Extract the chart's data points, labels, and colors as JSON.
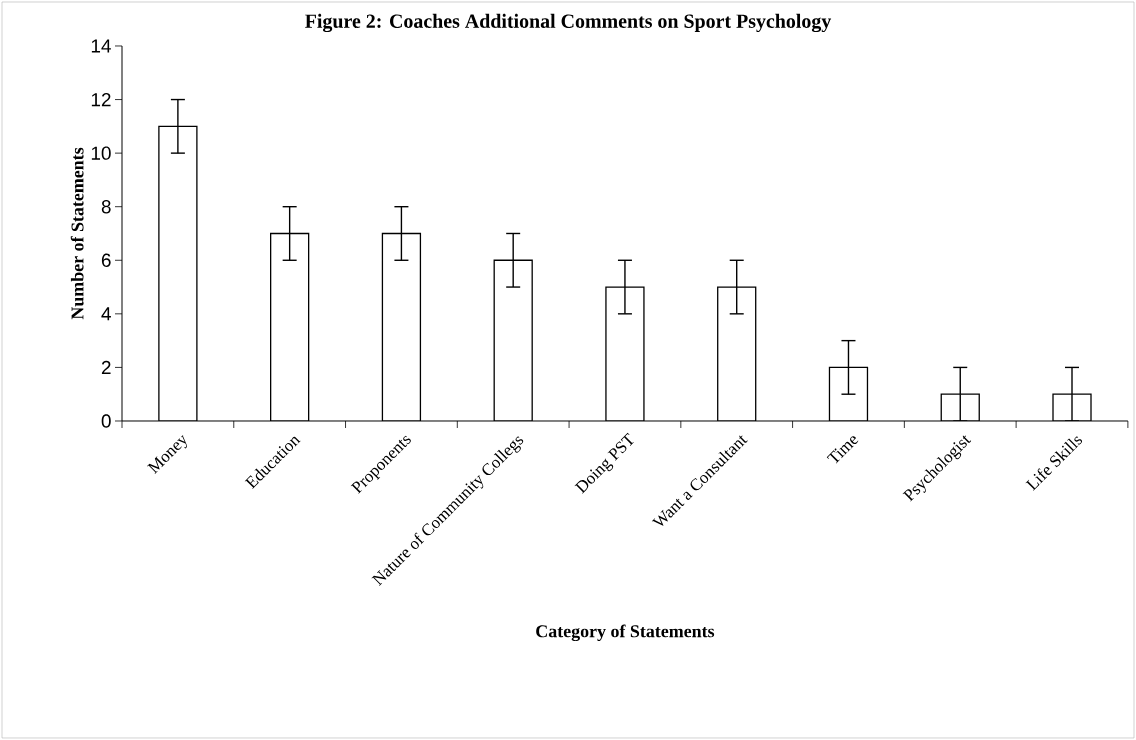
{
  "chart_data": {
    "type": "bar",
    "title": "Figure 2: Coaches Additional Comments on Sport Psychology",
    "xlabel": "Category of Statements",
    "ylabel": "Number of Statements",
    "categories": [
      "Money",
      "Education",
      "Proponents",
      "Nature of Community Collegs",
      "Doing PST",
      "Want a Consultant",
      "Time",
      "Psychologist",
      "Life Skills"
    ],
    "values": [
      11,
      7,
      7,
      6,
      5,
      5,
      2,
      1,
      1
    ],
    "errors": [
      1,
      1,
      1,
      1,
      1,
      1,
      1,
      1,
      1
    ],
    "color": "#ffffff",
    "ylim": [
      0,
      14
    ],
    "yticks": [
      0,
      2,
      4,
      6,
      8,
      10,
      12,
      14
    ],
    "grid": false
  }
}
